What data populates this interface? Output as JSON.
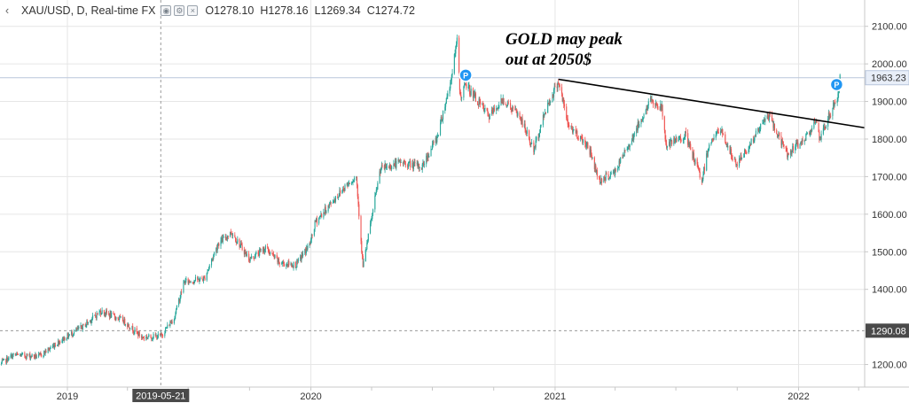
{
  "legend": {
    "symbol": "XAU/USD, D, Real-time FX",
    "open_key": "O",
    "open_val": "1278.10",
    "high_key": "H",
    "high_val": "1278.16",
    "low_key": "L",
    "low_val": "1269.34",
    "close_key": "C",
    "close_val": "1274.72",
    "icons": [
      "eye-icon",
      "settings-icon",
      "close-icon"
    ]
  },
  "annotation": {
    "line1": "GOLD may peak",
    "line2": "out at 2050$"
  },
  "colors": {
    "up": "#26a69a",
    "down": "#ef5350",
    "grid": "#e6e6e6",
    "trendline": "#000000",
    "crosshair": "#9a9a9a",
    "price_line": "#b9c6dc",
    "marker": "#2196f3"
  },
  "chart_data": {
    "type": "candlestick",
    "title": "XAU/USD, D, Real-time FX",
    "xlabel": "",
    "ylabel": "",
    "ylim": [
      1140,
      2170
    ],
    "x_range": [
      "2018-09-22",
      "2022-04-10"
    ],
    "y_ticks": [
      2100,
      2000,
      1900,
      1800,
      1700,
      1600,
      1500,
      1400,
      1200
    ],
    "y_tick_labels": [
      "2100.00",
      "2000.00",
      "1900.00",
      "1800.00",
      "1700.00",
      "1600.00",
      "1500.00",
      "1400.00",
      "1200.00"
    ],
    "x_tick_labels": [
      {
        "date": "2019-01-01",
        "label": "2019"
      },
      {
        "date": "2020-01-01",
        "label": "2020"
      },
      {
        "date": "2021-01-01",
        "label": "2021"
      },
      {
        "date": "2022-01-01",
        "label": "2022"
      }
    ],
    "x_minor_ticks": [
      "2019-04-01",
      "2019-07-01",
      "2019-10-01",
      "2020-04-01",
      "2020-07-01",
      "2020-10-01",
      "2021-04-01",
      "2021-07-01",
      "2021-10-01",
      "2022-04-01"
    ],
    "crosshair": {
      "date": "2019-05-21",
      "date_label": "2019-05-21",
      "price": 1290.08,
      "price_label": "1290.08"
    },
    "last_price": {
      "value": 1963.23,
      "label": "1963.23"
    },
    "markers": [
      {
        "date": "2020-08-20",
        "price": 1970,
        "label": "P"
      },
      {
        "date": "2022-02-27",
        "price": 1945,
        "label": "P"
      }
    ],
    "trendline": {
      "from": {
        "date": "2021-01-06",
        "price": 1959
      },
      "to": {
        "date": "2022-04-10",
        "price": 1830
      }
    },
    "path": [
      [
        "2018-09-22",
        1201
      ],
      [
        "2018-10-12",
        1225
      ],
      [
        "2018-11-20",
        1222
      ],
      [
        "2018-12-20",
        1262
      ],
      [
        "2019-01-25",
        1302
      ],
      [
        "2019-02-20",
        1342
      ],
      [
        "2019-03-25",
        1318
      ],
      [
        "2019-04-23",
        1272
      ],
      [
        "2019-05-21",
        1276
      ],
      [
        "2019-06-10",
        1325
      ],
      [
        "2019-06-25",
        1420
      ],
      [
        "2019-07-25",
        1428
      ],
      [
        "2019-08-15",
        1522
      ],
      [
        "2019-09-04",
        1552
      ],
      [
        "2019-10-01",
        1480
      ],
      [
        "2019-10-25",
        1510
      ],
      [
        "2019-11-15",
        1470
      ],
      [
        "2019-12-10",
        1465
      ],
      [
        "2019-12-31",
        1523
      ],
      [
        "2020-01-08",
        1580
      ],
      [
        "2020-02-24",
        1680
      ],
      [
        "2020-03-09",
        1700
      ],
      [
        "2020-03-19",
        1460
      ],
      [
        "2020-04-14",
        1720
      ],
      [
        "2020-05-15",
        1738
      ],
      [
        "2020-06-15",
        1725
      ],
      [
        "2020-07-08",
        1805
      ],
      [
        "2020-07-28",
        1950
      ],
      [
        "2020-08-07",
        2060
      ],
      [
        "2020-08-12",
        1910
      ],
      [
        "2020-08-20",
        1945
      ],
      [
        "2020-09-24",
        1860
      ],
      [
        "2020-10-15",
        1905
      ],
      [
        "2020-11-09",
        1860
      ],
      [
        "2020-11-30",
        1770
      ],
      [
        "2020-12-18",
        1880
      ],
      [
        "2021-01-06",
        1955
      ],
      [
        "2021-01-20",
        1840
      ],
      [
        "2021-02-20",
        1780
      ],
      [
        "2021-03-08",
        1690
      ],
      [
        "2021-03-31",
        1710
      ],
      [
        "2021-04-20",
        1780
      ],
      [
        "2021-05-25",
        1905
      ],
      [
        "2021-06-10",
        1880
      ],
      [
        "2021-06-17",
        1780
      ],
      [
        "2021-07-15",
        1810
      ],
      [
        "2021-08-09",
        1690
      ],
      [
        "2021-08-20",
        1790
      ],
      [
        "2021-09-06",
        1825
      ],
      [
        "2021-09-29",
        1730
      ],
      [
        "2021-10-20",
        1785
      ],
      [
        "2021-11-16",
        1865
      ],
      [
        "2021-12-15",
        1760
      ],
      [
        "2022-01-10",
        1800
      ],
      [
        "2022-01-26",
        1850
      ],
      [
        "2022-02-02",
        1795
      ],
      [
        "2022-02-15",
        1860
      ],
      [
        "2022-02-28",
        1910
      ],
      [
        "2022-03-04",
        1963
      ]
    ]
  }
}
